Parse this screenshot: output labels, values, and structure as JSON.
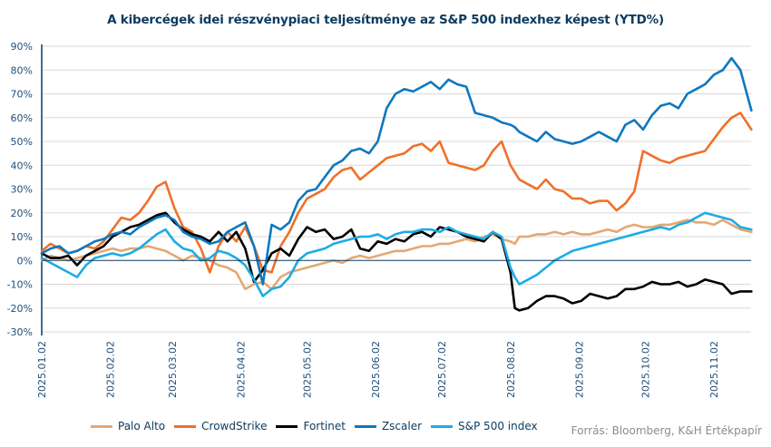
{
  "chart_data": {
    "type": "line",
    "title": "A kibercégek idei részvénypiaci teljesítménye az S&P 500 indexhez képest (YTD%)",
    "xlabel": "",
    "ylabel": "",
    "ylim": [
      -30,
      90
    ],
    "y_ticks": [
      90,
      80,
      70,
      60,
      50,
      40,
      30,
      20,
      10,
      0,
      -10,
      -20,
      -30
    ],
    "y_tick_labels": [
      "90%",
      "80%",
      "70%",
      "60%",
      "50%",
      "40%",
      "30%",
      "20%",
      "10%",
      "0%",
      "-10%",
      "-20%",
      "-30%"
    ],
    "x_ticks": [
      0,
      31,
      59,
      90,
      120,
      151,
      181,
      212,
      243,
      273,
      304
    ],
    "x_tick_labels": [
      "2025.01.02",
      "2025.02.02",
      "2025.03.02",
      "2025.04.02",
      "2025.05.02",
      "2025.06.02",
      "2025.07.02",
      "2025.08.02",
      "2025.09.02",
      "2025.10.02",
      "2025.11.02"
    ],
    "x_unit": "days since 2025.01.02",
    "xlim": [
      0,
      321
    ],
    "grid": "horizontal",
    "legend_position": "bottom",
    "x": [
      0,
      4,
      8,
      12,
      16,
      20,
      24,
      28,
      32,
      36,
      40,
      44,
      48,
      52,
      56,
      60,
      64,
      68,
      72,
      76,
      80,
      84,
      88,
      92,
      96,
      100,
      104,
      108,
      112,
      116,
      120,
      124,
      128,
      132,
      136,
      140,
      144,
      148,
      152,
      156,
      160,
      164,
      168,
      172,
      176,
      180,
      184,
      188,
      192,
      196,
      200,
      204,
      208,
      212,
      214,
      216,
      220,
      224,
      228,
      232,
      236,
      240,
      244,
      248,
      252,
      256,
      260,
      264,
      268,
      272,
      276,
      280,
      284,
      288,
      292,
      296,
      300,
      304,
      308,
      312,
      316,
      321
    ],
    "series": [
      {
        "name": "Palo Alto",
        "color": "#e3a873",
        "values": [
          0,
          2,
          1,
          0,
          1,
          2,
          3,
          4,
          5,
          4,
          5,
          5,
          6,
          5,
          4,
          2,
          0,
          2,
          1,
          0,
          -2,
          -3,
          -5,
          -12,
          -10,
          -9,
          -12,
          -7,
          -5,
          -4,
          -3,
          -2,
          -1,
          0,
          -1,
          1,
          2,
          1,
          2,
          3,
          4,
          4,
          5,
          6,
          6,
          7,
          7,
          8,
          9,
          8,
          10,
          11,
          9,
          8,
          7,
          10,
          10,
          11,
          11,
          12,
          11,
          12,
          11,
          11,
          12,
          13,
          12,
          14,
          15,
          14,
          14,
          15,
          15,
          16,
          17,
          16,
          16,
          15,
          17,
          15,
          13,
          12
        ]
      },
      {
        "name": "CrowdStrike",
        "color": "#f07027",
        "values": [
          4,
          7,
          5,
          3,
          4,
          6,
          5,
          8,
          13,
          18,
          17,
          20,
          25,
          31,
          33,
          22,
          14,
          12,
          5,
          -5,
          6,
          12,
          8,
          14,
          6,
          -4,
          -5,
          6,
          12,
          20,
          26,
          28,
          30,
          35,
          38,
          39,
          34,
          37,
          40,
          43,
          44,
          45,
          48,
          49,
          46,
          50,
          41,
          40,
          39,
          38,
          40,
          46,
          50,
          40,
          37,
          34,
          32,
          30,
          34,
          30,
          29,
          26,
          26,
          24,
          25,
          25,
          21,
          24,
          29,
          46,
          44,
          42,
          41,
          43,
          44,
          45,
          46,
          51,
          56,
          60,
          62,
          55
        ]
      },
      {
        "name": "Fortinet",
        "color": "#000000",
        "values": [
          3,
          1,
          1,
          2,
          -2,
          2,
          4,
          6,
          10,
          12,
          14,
          15,
          17,
          19,
          20,
          16,
          13,
          11,
          10,
          8,
          12,
          8,
          12,
          5,
          -9,
          -4,
          3,
          5,
          2,
          9,
          14,
          12,
          13,
          9,
          10,
          13,
          5,
          4,
          8,
          7,
          9,
          8,
          11,
          12,
          10,
          14,
          13,
          12,
          10,
          9,
          8,
          12,
          9,
          -5,
          -20,
          -21,
          -20,
          -17,
          -15,
          -15,
          -16,
          -18,
          -17,
          -14,
          -15,
          -16,
          -15,
          -12,
          -12,
          -11,
          -9,
          -10,
          -10,
          -9,
          -11,
          -10,
          -8,
          -9,
          -10,
          -14,
          -13,
          -13
        ]
      },
      {
        "name": "Zscaler",
        "color": "#0d78bf",
        "values": [
          3,
          5,
          6,
          3,
          4,
          6,
          8,
          9,
          11,
          12,
          11,
          14,
          16,
          18,
          19,
          17,
          12,
          10,
          9,
          7,
          8,
          12,
          14,
          16,
          6,
          -10,
          15,
          13,
          16,
          25,
          29,
          30,
          35,
          40,
          42,
          46,
          47,
          45,
          50,
          64,
          70,
          72,
          71,
          73,
          75,
          72,
          76,
          74,
          73,
          62,
          61,
          60,
          58,
          57,
          56,
          54,
          52,
          50,
          54,
          51,
          50,
          49,
          50,
          52,
          54,
          52,
          50,
          57,
          59,
          55,
          61,
          65,
          66,
          64,
          70,
          72,
          74,
          78,
          80,
          85,
          80,
          63
        ]
      },
      {
        "name": "S&P 500 index",
        "color": "#1eabe4",
        "values": [
          1,
          -1,
          -3,
          -5,
          -7,
          -2,
          1,
          2,
          3,
          2,
          3,
          5,
          8,
          11,
          13,
          8,
          5,
          4,
          0,
          1,
          4,
          3,
          1,
          -2,
          -8,
          -15,
          -12,
          -11,
          -7,
          0,
          3,
          4,
          5,
          7,
          8,
          9,
          10,
          10,
          11,
          9,
          11,
          12,
          12,
          13,
          13,
          12,
          14,
          12,
          11,
          10,
          9,
          12,
          10,
          -3,
          -7,
          -10,
          -8,
          -6,
          -3,
          0,
          2,
          4,
          5,
          6,
          7,
          8,
          9,
          10,
          11,
          12,
          13,
          14,
          13,
          15,
          16,
          18,
          20,
          19,
          18,
          17,
          14,
          13
        ]
      }
    ],
    "legend": [
      "Palo Alto",
      "CrowdStrike",
      "Fortinet",
      "Zscaler",
      "S&P 500 index"
    ],
    "source": "Forrás: Bloomberg, K&H Értékpapír"
  }
}
